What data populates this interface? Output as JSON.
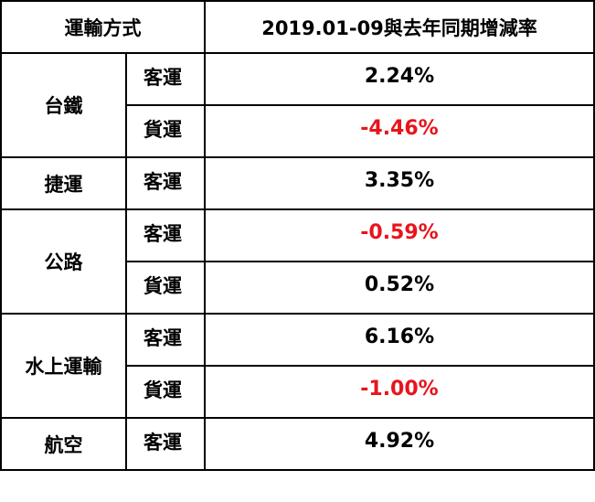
{
  "header": {
    "mode_col": "運輸方式",
    "rate_col": "2019.01-09與去年同期增減率"
  },
  "colors": {
    "negative": "#e8141c",
    "text": "#000000",
    "border": "#000000"
  },
  "rows": [
    {
      "mode": "台鐵",
      "type": "客運",
      "rate": "2.24%"
    },
    {
      "type": "貨運",
      "rate": "-4.46%"
    },
    {
      "mode": "捷運",
      "type": "客運",
      "rate": "3.35%"
    },
    {
      "mode": "公路",
      "type": "客運",
      "rate": "-0.59%"
    },
    {
      "type": "貨運",
      "rate": "0.52%"
    },
    {
      "mode": "水上運輸",
      "type": "客運",
      "rate": "6.16%"
    },
    {
      "type": "貨運",
      "rate": "-1.00%"
    },
    {
      "mode": "航空",
      "type": "客運",
      "rate": "4.92%"
    }
  ]
}
